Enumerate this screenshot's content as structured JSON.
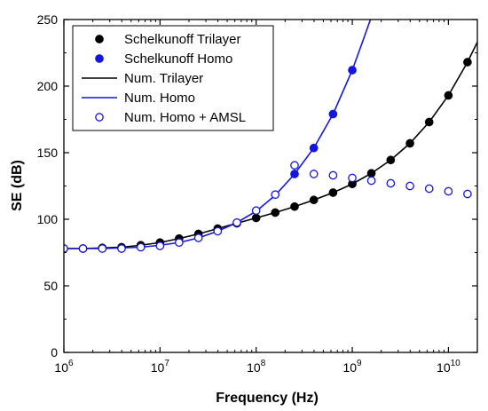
{
  "chart_data": {
    "type": "line",
    "title": "",
    "xlabel": "Frequency (Hz)",
    "ylabel": "SE (dB)",
    "xscale": "log",
    "xlim": [
      1000000,
      20000000000
    ],
    "ylim": [
      0,
      250
    ],
    "xticks": [
      {
        "value": 1000000,
        "base": "10",
        "exp": "6"
      },
      {
        "value": 10000000,
        "base": "10",
        "exp": "7"
      },
      {
        "value": 100000000,
        "base": "10",
        "exp": "8"
      },
      {
        "value": 1000000000,
        "base": "10",
        "exp": "9"
      },
      {
        "value": 10000000000,
        "base": "10",
        "exp": "10"
      }
    ],
    "yticks": [
      "0",
      "50",
      "100",
      "150",
      "200",
      "250"
    ],
    "grid": false,
    "legend_position": "top-left",
    "series": [
      {
        "name": "Schelkunoff  Trilayer",
        "kind": "markers-filled",
        "color": "#000000",
        "x": [
          1000000,
          1580000,
          2510000,
          3980000,
          6310000,
          10000000,
          15800000,
          25100000,
          39800000,
          63100000,
          100000000,
          158000000,
          251000000,
          398000000,
          631000000,
          1000000000,
          1580000000,
          2510000000,
          3980000000,
          6310000000,
          10000000000,
          15800000000
        ],
        "y": [
          78,
          78,
          78.5,
          79,
          80.5,
          82.5,
          85.5,
          89,
          93,
          97,
          101,
          105,
          109.5,
          114.5,
          120,
          126.5,
          134.5,
          144.5,
          157,
          173,
          193,
          218
        ]
      },
      {
        "name": "Schelkunoff  Homo",
        "kind": "markers-filled",
        "color": "#1515e0",
        "x": [
          251000000,
          398000000,
          631000000,
          1000000000
        ],
        "y": [
          134,
          153.5,
          179,
          212
        ]
      },
      {
        "name": "Num. Trilayer",
        "kind": "line",
        "color": "#000000",
        "x": [
          1000000,
          1580000,
          2510000,
          3980000,
          6310000,
          10000000,
          15800000,
          25100000,
          39800000,
          63100000,
          100000000,
          158000000,
          251000000,
          398000000,
          631000000,
          1000000000,
          1580000000,
          2510000000,
          3980000000,
          6310000000,
          10000000000,
          15800000000,
          20000000000
        ],
        "y": [
          78,
          78,
          78.5,
          79,
          80.5,
          82.5,
          85.5,
          89,
          93,
          97,
          101,
          105,
          109.5,
          114.5,
          120,
          126.5,
          134.5,
          144.5,
          157,
          173,
          193,
          218,
          233
        ]
      },
      {
        "name": "Num. Homo",
        "kind": "line",
        "color": "#1515e0",
        "x": [
          1000000,
          1580000,
          2510000,
          3980000,
          6310000,
          10000000,
          15800000,
          25100000,
          39800000,
          63100000,
          100000000,
          158000000,
          251000000,
          398000000,
          631000000,
          1000000000,
          1260000000,
          1580000000
        ],
        "y": [
          78,
          78,
          78,
          78.5,
          79,
          80.5,
          82.5,
          86,
          91,
          97.5,
          106,
          118,
          134,
          153.5,
          179,
          212,
          232,
          252
        ]
      },
      {
        "name": "Num. Homo + AMSL",
        "kind": "markers-open",
        "color": "#1515e0",
        "x": [
          1000000,
          1580000,
          2510000,
          3980000,
          6310000,
          10000000,
          15800000,
          25100000,
          39800000,
          63100000,
          100000000,
          158000000,
          251000000,
          398000000,
          631000000,
          1000000000,
          1580000000,
          2510000000,
          3980000000,
          6310000000,
          10000000000,
          15800000000
        ],
        "y": [
          78,
          78,
          78,
          78,
          79,
          80,
          82.5,
          86,
          91,
          97.5,
          106.5,
          118.5,
          140.5,
          134,
          133,
          131,
          129,
          127,
          125,
          123,
          121,
          119
        ]
      }
    ]
  }
}
